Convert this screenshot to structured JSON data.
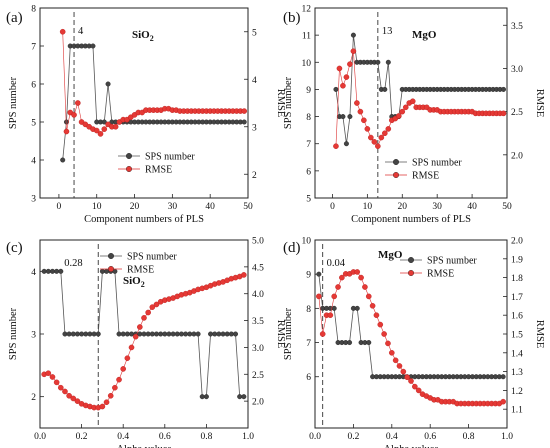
{
  "chart_data": [
    {
      "id": "a",
      "type": "line",
      "panel_label": "(a)",
      "annotation": "SiO",
      "annotation_sub": "2",
      "xlabel": "Component numbers of PLS",
      "ylabel": "SPS number",
      "ylabel_right": "RMSE",
      "xlim": [
        -5,
        50
      ],
      "xticks": [
        0,
        10,
        20,
        30,
        40,
        50
      ],
      "ylim": [
        3,
        8
      ],
      "yticks": [
        3,
        4,
        5,
        6,
        7,
        8
      ],
      "ylim_right": [
        1.5,
        5.5
      ],
      "yticks_right": [
        2,
        3,
        4,
        5
      ],
      "vline": 4,
      "vline_label": "4",
      "legend": "lower-right",
      "grid": false,
      "series": [
        {
          "name": "SPS number",
          "axis": "left",
          "color": "#444444",
          "x": [
            1,
            2,
            3,
            4,
            5,
            6,
            7,
            8,
            9,
            10,
            11,
            12,
            13,
            14,
            15,
            16,
            17,
            18,
            19,
            20,
            21,
            22,
            23,
            24,
            25,
            26,
            27,
            28,
            29,
            30,
            31,
            32,
            33,
            34,
            35,
            36,
            37,
            38,
            39,
            40,
            41,
            42,
            43,
            44,
            45,
            46,
            47,
            48,
            49
          ],
          "values": [
            4,
            5,
            7,
            7,
            7,
            7,
            7,
            7,
            7,
            5,
            5,
            5,
            6,
            5,
            5,
            5,
            5,
            5,
            5,
            5,
            5,
            5,
            5,
            5,
            5,
            5,
            5,
            5,
            5,
            5,
            5,
            5,
            5,
            5,
            5,
            5,
            5,
            5,
            5,
            5,
            5,
            5,
            5,
            5,
            5,
            5,
            5,
            5,
            5
          ]
        },
        {
          "name": "RMSE",
          "axis": "right",
          "color": "#e53935",
          "x": [
            1,
            2,
            3,
            4,
            5,
            6,
            7,
            8,
            9,
            10,
            11,
            12,
            13,
            14,
            15,
            16,
            17,
            18,
            19,
            20,
            21,
            22,
            23,
            24,
            25,
            26,
            27,
            28,
            29,
            30,
            31,
            32,
            33,
            34,
            35,
            36,
            37,
            38,
            39,
            40,
            41,
            42,
            43,
            44,
            45,
            46,
            47,
            48,
            49
          ],
          "values": [
            5.0,
            2.9,
            3.3,
            3.25,
            3.5,
            3.1,
            3.05,
            3.0,
            2.95,
            2.92,
            2.85,
            2.95,
            3.05,
            3.0,
            3.0,
            3.1,
            3.15,
            3.15,
            3.2,
            3.25,
            3.3,
            3.3,
            3.35,
            3.35,
            3.35,
            3.35,
            3.35,
            3.38,
            3.38,
            3.35,
            3.35,
            3.33,
            3.33,
            3.33,
            3.33,
            3.33,
            3.33,
            3.33,
            3.33,
            3.33,
            3.33,
            3.33,
            3.33,
            3.33,
            3.33,
            3.33,
            3.33,
            3.33,
            3.33
          ]
        }
      ]
    },
    {
      "id": "b",
      "type": "line",
      "panel_label": "(b)",
      "annotation": "MgO",
      "xlabel": "Component numbers of PLS",
      "ylabel": "SPS number",
      "ylabel_right": "RMSE",
      "xlim": [
        -5,
        50
      ],
      "xticks": [
        0,
        10,
        20,
        30,
        40,
        50
      ],
      "ylim": [
        5,
        12
      ],
      "yticks": [
        5,
        6,
        7,
        8,
        9,
        10,
        11,
        12
      ],
      "ylim_right": [
        1.5,
        3.7
      ],
      "yticks_right": [
        2.0,
        2.5,
        3.0,
        3.5
      ],
      "vline": 13,
      "vline_label": "13",
      "legend": "lower-right",
      "grid": false,
      "series": [
        {
          "name": "SPS number",
          "axis": "left",
          "color": "#444444",
          "x": [
            1,
            2,
            3,
            4,
            5,
            6,
            7,
            8,
            9,
            10,
            11,
            12,
            13,
            14,
            15,
            16,
            17,
            18,
            19,
            20,
            21,
            22,
            23,
            24,
            25,
            26,
            27,
            28,
            29,
            30,
            31,
            32,
            33,
            34,
            35,
            36,
            37,
            38,
            39,
            40,
            41,
            42,
            43,
            44,
            45,
            46,
            47,
            48,
            49
          ],
          "values": [
            9,
            8,
            8,
            7,
            8,
            11,
            10,
            10,
            10,
            10,
            10,
            10,
            10,
            9,
            9,
            10,
            8,
            8,
            8,
            9,
            9,
            9,
            9,
            9,
            9,
            9,
            9,
            9,
            9,
            9,
            9,
            9,
            9,
            9,
            9,
            9,
            9,
            9,
            9,
            9,
            9,
            9,
            9,
            9,
            9,
            9,
            9,
            9,
            9
          ]
        },
        {
          "name": "RMSE",
          "axis": "right",
          "color": "#e53935",
          "x": [
            1,
            2,
            3,
            4,
            5,
            6,
            7,
            8,
            9,
            10,
            11,
            12,
            13,
            14,
            15,
            16,
            17,
            18,
            19,
            20,
            21,
            22,
            23,
            24,
            25,
            26,
            27,
            28,
            29,
            30,
            31,
            32,
            33,
            34,
            35,
            36,
            37,
            38,
            39,
            40,
            41,
            42,
            43,
            44,
            45,
            46,
            47,
            48,
            49
          ],
          "values": [
            2.1,
            3.0,
            2.8,
            2.9,
            3.05,
            3.2,
            2.6,
            2.5,
            2.4,
            2.3,
            2.2,
            2.15,
            2.1,
            2.2,
            2.25,
            2.3,
            2.4,
            2.42,
            2.45,
            2.5,
            2.55,
            2.6,
            2.62,
            2.55,
            2.55,
            2.55,
            2.55,
            2.52,
            2.52,
            2.52,
            2.5,
            2.5,
            2.5,
            2.5,
            2.5,
            2.5,
            2.5,
            2.5,
            2.5,
            2.5,
            2.48,
            2.48,
            2.48,
            2.48,
            2.48,
            2.48,
            2.48,
            2.48,
            2.48
          ]
        }
      ]
    },
    {
      "id": "c",
      "type": "line",
      "panel_label": "(c)",
      "annotation": "SiO",
      "annotation_sub": "2",
      "xlabel": "Alpha values",
      "ylabel": "SPS number",
      "ylabel_right": "RMSE",
      "xlim": [
        0.0,
        1.0
      ],
      "xticks": [
        0.0,
        0.2,
        0.4,
        0.6,
        0.8,
        1.0
      ],
      "ylim": [
        1.5,
        4.5
      ],
      "yticks": [
        2,
        3,
        4
      ],
      "ylim_right": [
        1.5,
        5.0
      ],
      "yticks_right": [
        2.0,
        2.5,
        3.0,
        3.5,
        4.0,
        4.5,
        5.0
      ],
      "vline": 0.28,
      "vline_label": "0.28",
      "legend": "top-right",
      "grid": false,
      "series": [
        {
          "name": "SPS number",
          "axis": "left",
          "color": "#444444",
          "x": [
            0.02,
            0.04,
            0.06,
            0.08,
            0.1,
            0.12,
            0.14,
            0.16,
            0.18,
            0.2,
            0.22,
            0.24,
            0.26,
            0.28,
            0.3,
            0.32,
            0.34,
            0.36,
            0.38,
            0.4,
            0.42,
            0.44,
            0.46,
            0.48,
            0.5,
            0.52,
            0.54,
            0.56,
            0.58,
            0.6,
            0.62,
            0.64,
            0.66,
            0.68,
            0.7,
            0.72,
            0.74,
            0.76,
            0.78,
            0.8,
            0.82,
            0.84,
            0.86,
            0.88,
            0.9,
            0.92,
            0.94,
            0.96,
            0.98
          ],
          "values": [
            4,
            4,
            4,
            4,
            4,
            3,
            3,
            3,
            3,
            3,
            3,
            3,
            3,
            3,
            4,
            4,
            4,
            4,
            3,
            3,
            3,
            3,
            3,
            3,
            3,
            3,
            3,
            3,
            3,
            3,
            3,
            3,
            3,
            3,
            3,
            3,
            3,
            3,
            2,
            2,
            3,
            3,
            3,
            3,
            3,
            3,
            3,
            2,
            2
          ]
        },
        {
          "name": "RMSE",
          "axis": "right",
          "color": "#e53935",
          "x": [
            0.02,
            0.04,
            0.06,
            0.08,
            0.1,
            0.12,
            0.14,
            0.16,
            0.18,
            0.2,
            0.22,
            0.24,
            0.26,
            0.28,
            0.3,
            0.32,
            0.34,
            0.36,
            0.38,
            0.4,
            0.42,
            0.44,
            0.46,
            0.48,
            0.5,
            0.52,
            0.54,
            0.56,
            0.58,
            0.6,
            0.62,
            0.64,
            0.66,
            0.68,
            0.7,
            0.72,
            0.74,
            0.76,
            0.78,
            0.8,
            0.82,
            0.84,
            0.86,
            0.88,
            0.9,
            0.92,
            0.94,
            0.96,
            0.98
          ],
          "values": [
            2.5,
            2.52,
            2.45,
            2.35,
            2.25,
            2.18,
            2.1,
            2.05,
            2.0,
            1.95,
            1.92,
            1.9,
            1.88,
            1.88,
            1.9,
            1.98,
            2.1,
            2.25,
            2.4,
            2.6,
            2.8,
            3.0,
            3.2,
            3.38,
            3.55,
            3.65,
            3.75,
            3.8,
            3.85,
            3.88,
            3.9,
            3.92,
            3.95,
            3.98,
            4.0,
            4.02,
            4.05,
            4.08,
            4.1,
            4.12,
            4.15,
            4.18,
            4.2,
            4.22,
            4.25,
            4.28,
            4.3,
            4.32,
            4.35
          ]
        }
      ]
    },
    {
      "id": "d",
      "type": "line",
      "panel_label": "(d)",
      "annotation": "MgO",
      "xlabel": "Alpha values",
      "ylabel": "SPS number",
      "ylabel_right": "RMSE",
      "xlim": [
        0.0,
        1.0
      ],
      "xticks": [
        0.0,
        0.2,
        0.4,
        0.6,
        0.8,
        1.0
      ],
      "ylim": [
        4.5,
        10
      ],
      "yticks": [
        6,
        7,
        8,
        9,
        10
      ],
      "ylim_right": [
        1.0,
        2.0
      ],
      "yticks_right": [
        1.1,
        1.2,
        1.3,
        1.4,
        1.5,
        1.6,
        1.7,
        1.8,
        1.9,
        2.0
      ],
      "vline": 0.04,
      "vline_label": "0.04",
      "legend": "top-right",
      "grid": false,
      "series": [
        {
          "name": "SPS number",
          "axis": "left",
          "color": "#444444",
          "x": [
            0.02,
            0.04,
            0.06,
            0.08,
            0.1,
            0.12,
            0.14,
            0.16,
            0.18,
            0.2,
            0.22,
            0.24,
            0.26,
            0.28,
            0.3,
            0.32,
            0.34,
            0.36,
            0.38,
            0.4,
            0.42,
            0.44,
            0.46,
            0.48,
            0.5,
            0.52,
            0.54,
            0.56,
            0.58,
            0.6,
            0.62,
            0.64,
            0.66,
            0.68,
            0.7,
            0.72,
            0.74,
            0.76,
            0.78,
            0.8,
            0.82,
            0.84,
            0.86,
            0.88,
            0.9,
            0.92,
            0.94,
            0.96,
            0.98
          ],
          "values": [
            9,
            8,
            8,
            8,
            8,
            7,
            7,
            7,
            7,
            8,
            8,
            7,
            7,
            7,
            6,
            6,
            6,
            6,
            6,
            6,
            6,
            6,
            6,
            6,
            6,
            6,
            6,
            6,
            6,
            6,
            6,
            6,
            6,
            6,
            6,
            6,
            6,
            6,
            6,
            6,
            6,
            6,
            6,
            6,
            6,
            6,
            6,
            6,
            6
          ]
        },
        {
          "name": "RMSE",
          "axis": "right",
          "color": "#e53935",
          "x": [
            0.02,
            0.04,
            0.06,
            0.08,
            0.1,
            0.12,
            0.14,
            0.16,
            0.18,
            0.2,
            0.22,
            0.24,
            0.26,
            0.28,
            0.3,
            0.32,
            0.34,
            0.36,
            0.38,
            0.4,
            0.42,
            0.44,
            0.46,
            0.48,
            0.5,
            0.52,
            0.54,
            0.56,
            0.58,
            0.6,
            0.62,
            0.64,
            0.66,
            0.68,
            0.7,
            0.72,
            0.74,
            0.76,
            0.78,
            0.8,
            0.82,
            0.84,
            0.86,
            0.88,
            0.9,
            0.92,
            0.94,
            0.96,
            0.98
          ],
          "values": [
            1.7,
            1.5,
            1.6,
            1.6,
            1.7,
            1.75,
            1.8,
            1.82,
            1.82,
            1.83,
            1.83,
            1.8,
            1.75,
            1.7,
            1.65,
            1.6,
            1.55,
            1.5,
            1.45,
            1.4,
            1.36,
            1.33,
            1.3,
            1.27,
            1.25,
            1.22,
            1.2,
            1.18,
            1.17,
            1.16,
            1.15,
            1.15,
            1.14,
            1.14,
            1.14,
            1.14,
            1.13,
            1.13,
            1.13,
            1.13,
            1.13,
            1.13,
            1.13,
            1.13,
            1.13,
            1.13,
            1.13,
            1.13,
            1.14
          ]
        }
      ]
    }
  ]
}
